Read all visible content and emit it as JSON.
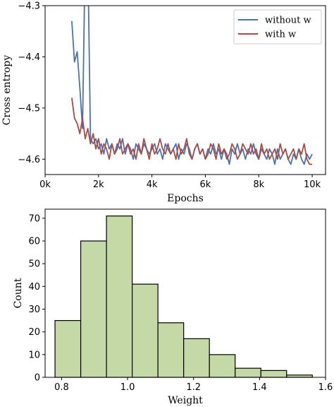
{
  "chart_data": [
    {
      "type": "line",
      "xlabel": "Epochs",
      "ylabel": "Cross entropy",
      "xlim": [
        0,
        10500
      ],
      "ylim": [
        -4.63,
        -4.3
      ],
      "xticks": [
        0,
        2000,
        4000,
        6000,
        8000,
        10000
      ],
      "xtick_labels": [
        "0k",
        "2k",
        "4k",
        "6k",
        "8k",
        "10k"
      ],
      "yticks": [
        -4.3,
        -4.4,
        -4.5,
        -4.6
      ],
      "ytick_labels": [
        "−4.3",
        "−4.4",
        "−4.5",
        "−4.6"
      ],
      "grid": false,
      "legend_position": "top-right",
      "series": [
        {
          "name": "without w",
          "color": "#4c72b0",
          "x": [
            1000,
            1100,
            1200,
            1300,
            1400,
            1500,
            1600,
            1700,
            1800,
            1900,
            2000,
            2100,
            2200,
            2300,
            2400,
            2500,
            2600,
            2700,
            2800,
            2900,
            3000,
            3100,
            3200,
            3300,
            3400,
            3500,
            3600,
            3700,
            3800,
            3900,
            4000,
            4100,
            4200,
            4300,
            4400,
            4500,
            4600,
            4700,
            4800,
            4900,
            5000,
            5100,
            5200,
            5300,
            5400,
            5500,
            5600,
            5700,
            5800,
            5900,
            6000,
            6100,
            6200,
            6300,
            6400,
            6500,
            6600,
            6700,
            6800,
            6900,
            7000,
            7100,
            7200,
            7300,
            7400,
            7500,
            7600,
            7700,
            7800,
            7900,
            8000,
            8100,
            8200,
            8300,
            8400,
            8500,
            8600,
            8700,
            8800,
            8900,
            9000,
            9100,
            9200,
            9300,
            9400,
            9500,
            9600,
            9700,
            9800,
            9900,
            10000
          ],
          "y": [
            -4.33,
            -4.41,
            -4.39,
            -4.46,
            -4.54,
            -4.2,
            -4.2,
            -4.56,
            -4.57,
            -4.56,
            -4.58,
            -4.57,
            -4.59,
            -4.56,
            -4.58,
            -4.57,
            -4.59,
            -4.57,
            -4.58,
            -4.56,
            -4.59,
            -4.57,
            -4.58,
            -4.6,
            -4.57,
            -4.58,
            -4.59,
            -4.57,
            -4.58,
            -4.59,
            -4.58,
            -4.57,
            -4.59,
            -4.58,
            -4.6,
            -4.57,
            -4.58,
            -4.59,
            -4.58,
            -4.57,
            -4.6,
            -4.58,
            -4.59,
            -4.57,
            -4.58,
            -4.6,
            -4.58,
            -4.57,
            -4.59,
            -4.58,
            -4.6,
            -4.58,
            -4.59,
            -4.57,
            -4.59,
            -4.58,
            -4.6,
            -4.58,
            -4.59,
            -4.61,
            -4.58,
            -4.59,
            -4.57,
            -4.59,
            -4.58,
            -4.6,
            -4.58,
            -4.59,
            -4.57,
            -4.59,
            -4.6,
            -4.58,
            -4.59,
            -4.6,
            -4.58,
            -4.59,
            -4.61,
            -4.58,
            -4.6,
            -4.59,
            -4.58,
            -4.6,
            -4.61,
            -4.59,
            -4.6,
            -4.58,
            -4.6,
            -4.61,
            -4.59,
            -4.6,
            -4.59
          ]
        },
        {
          "name": "with w",
          "color": "#a64d45",
          "x": [
            1000,
            1100,
            1200,
            1300,
            1400,
            1500,
            1600,
            1700,
            1800,
            1900,
            2000,
            2100,
            2200,
            2300,
            2400,
            2500,
            2600,
            2700,
            2800,
            2900,
            3000,
            3100,
            3200,
            3300,
            3400,
            3500,
            3600,
            3700,
            3800,
            3900,
            4000,
            4100,
            4200,
            4300,
            4400,
            4500,
            4600,
            4700,
            4800,
            4900,
            5000,
            5100,
            5200,
            5300,
            5400,
            5500,
            5600,
            5700,
            5800,
            5900,
            6000,
            6100,
            6200,
            6300,
            6400,
            6500,
            6600,
            6700,
            6800,
            6900,
            7000,
            7100,
            7200,
            7300,
            7400,
            7500,
            7600,
            7700,
            7800,
            7900,
            8000,
            8100,
            8200,
            8300,
            8400,
            8500,
            8600,
            8700,
            8800,
            8900,
            9000,
            9100,
            9200,
            9300,
            9400,
            9500,
            9600,
            9700,
            9800,
            9900,
            10000
          ],
          "y": [
            -4.48,
            -4.52,
            -4.53,
            -4.55,
            -4.52,
            -4.56,
            -4.54,
            -4.57,
            -4.55,
            -4.58,
            -4.56,
            -4.59,
            -4.57,
            -4.58,
            -4.6,
            -4.57,
            -4.59,
            -4.58,
            -4.56,
            -4.59,
            -4.58,
            -4.57,
            -4.59,
            -4.58,
            -4.6,
            -4.57,
            -4.59,
            -4.56,
            -4.58,
            -4.6,
            -4.57,
            -4.59,
            -4.58,
            -4.56,
            -4.58,
            -4.59,
            -4.57,
            -4.59,
            -4.58,
            -4.6,
            -4.57,
            -4.59,
            -4.58,
            -4.56,
            -4.59,
            -4.6,
            -4.58,
            -4.57,
            -4.59,
            -4.58,
            -4.6,
            -4.59,
            -4.57,
            -4.58,
            -4.6,
            -4.57,
            -4.59,
            -4.58,
            -4.6,
            -4.59,
            -4.57,
            -4.58,
            -4.6,
            -4.59,
            -4.57,
            -4.58,
            -4.59,
            -4.57,
            -4.59,
            -4.58,
            -4.6,
            -4.57,
            -4.59,
            -4.58,
            -4.6,
            -4.59,
            -4.58,
            -4.6,
            -4.57,
            -4.59,
            -4.58,
            -4.6,
            -4.59,
            -4.58,
            -4.6,
            -4.58,
            -4.59,
            -4.57,
            -4.6,
            -4.61,
            -4.61
          ]
        }
      ]
    },
    {
      "type": "bar",
      "xlabel": "Weight",
      "ylabel": "Count",
      "xlim": [
        0.75,
        1.6
      ],
      "ylim": [
        0,
        74
      ],
      "xticks": [
        0.8,
        1.0,
        1.2,
        1.4,
        1.6
      ],
      "xtick_labels": [
        "0.8",
        "1.0",
        "1.2",
        "1.4",
        "1.6"
      ],
      "yticks": [
        0,
        10,
        20,
        30,
        40,
        50,
        60,
        70
      ],
      "ytick_labels": [
        "0",
        "10",
        "20",
        "30",
        "40",
        "50",
        "60",
        "70"
      ],
      "grid": false,
      "bar_color": "#c5d9a6",
      "edge_color": "#000000",
      "bin_edges": [
        0.78,
        0.858,
        0.936,
        1.014,
        1.092,
        1.17,
        1.248,
        1.326,
        1.404,
        1.482,
        1.56
      ],
      "values": [
        25,
        60,
        71,
        41,
        24,
        17,
        10,
        4,
        3,
        1
      ]
    }
  ]
}
